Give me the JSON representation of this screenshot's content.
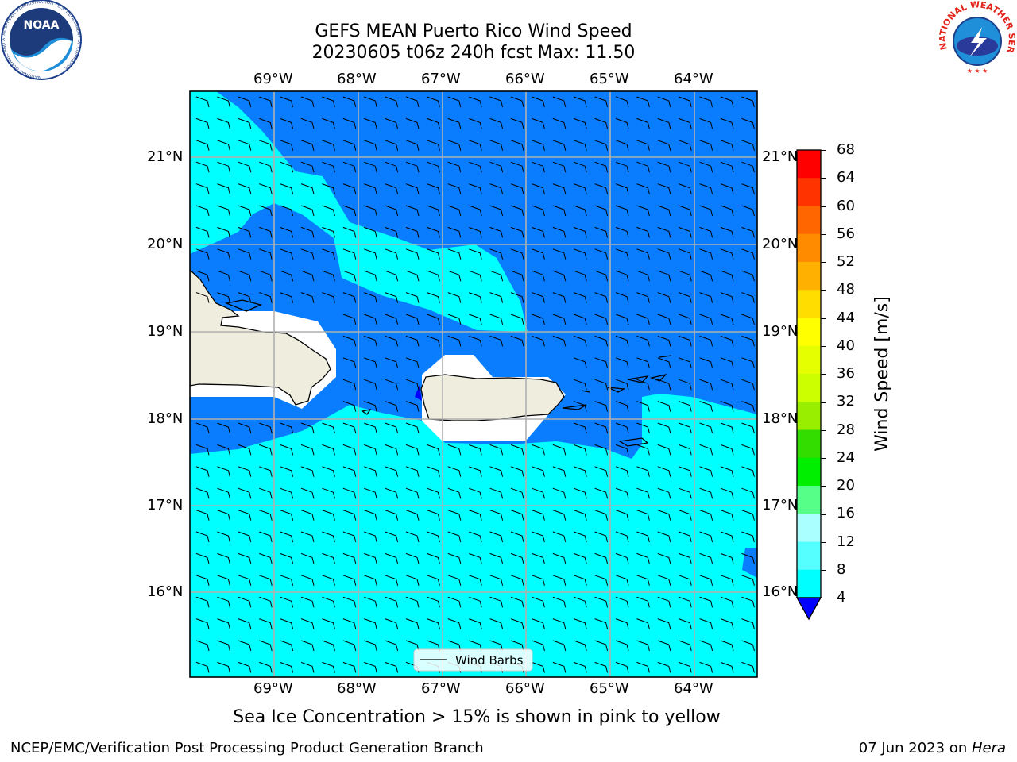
{
  "header": {
    "title_line1": "GEFS MEAN Puerto Rico Wind Speed",
    "title_line2": "20230605 t06z 240h fcst   Max: 11.50"
  },
  "logos": {
    "noaa_text": "NOAA",
    "noaa_ring_text": "NATIONAL OCEANIC AND ATMOSPHERIC ADMINISTRATION · U.S. DEPARTMENT OF COMMERCE",
    "nws_ring_text": "NATIONAL WEATHER SERVICE"
  },
  "map": {
    "lon_labels": [
      "69°W",
      "68°W",
      "67°W",
      "66°W",
      "65°W",
      "64°W"
    ],
    "lat_labels": [
      "21°N",
      "20°N",
      "19°N",
      "18°N",
      "17°N",
      "16°N"
    ],
    "legend_label": "Wind Barbs",
    "wind_direction": "easterly (from the east)",
    "colors": {
      "ocean_low": "#0a7dff",
      "ocean_mid": "#00ffff",
      "land": "#eeedde",
      "grid": "#b0b0b0"
    }
  },
  "colorbar": {
    "label": "Wind Speed [m/s]",
    "ticks": [
      "68",
      "64",
      "60",
      "56",
      "52",
      "48",
      "44",
      "40",
      "36",
      "32",
      "28",
      "24",
      "20",
      "16",
      "12",
      "8",
      "4"
    ],
    "colors": [
      "#ff0000",
      "#ff3300",
      "#ff6600",
      "#ff8c00",
      "#ffb000",
      "#ffdd00",
      "#ffff00",
      "#e6ff00",
      "#ccff00",
      "#99ee00",
      "#33dd00",
      "#00ee00",
      "#55ff88",
      "#aaffff",
      "#55ffff",
      "#00ffff",
      "#0a7dff"
    ],
    "extend_color": "#0000ff"
  },
  "note": "Sea Ice Concentration > 15% is shown in pink to yellow",
  "footer": {
    "left": "NCEP/EMC/Verification Post Processing Product Generation Branch",
    "date": "07 Jun 2023 on ",
    "machine": "Hera"
  }
}
